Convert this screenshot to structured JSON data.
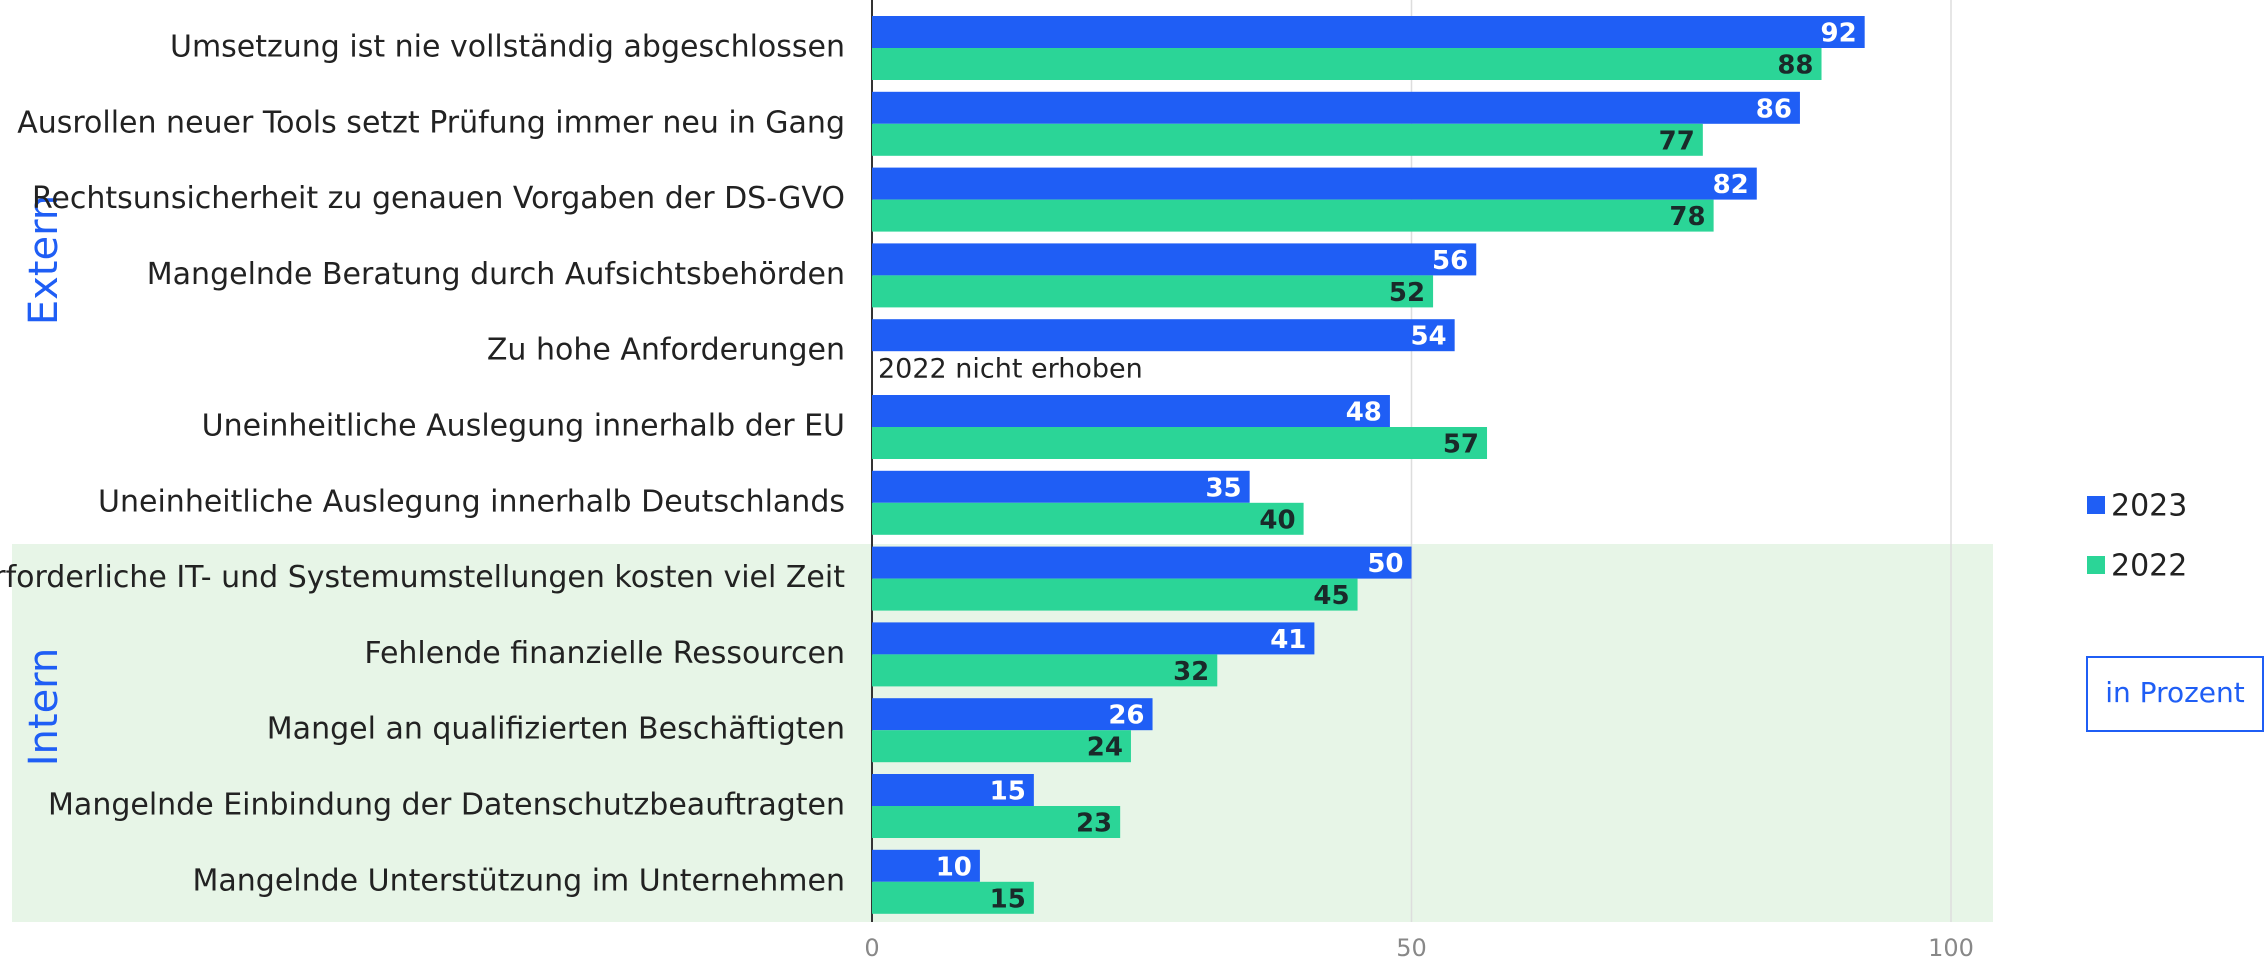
{
  "chart_data": {
    "type": "hbar",
    "categories": [
      "Umsetzung ist nie vollständig abgeschlossen",
      "Ausrollen neuer Tools setzt Prüfung immer neu in Gang",
      "Rechtsunsicherheit zu genauen Vorgaben der DS-GVO",
      "Mangelnde Beratung durch Aufsichtsbehörden",
      "Zu hohe Anforderungen",
      "Uneinheitliche Auslegung innerhalb der EU",
      "Uneinheitliche Auslegung innerhalb Deutschlands",
      "Erforderliche IT- und Systemumstellungen kosten viel Zeit",
      "Fehlende finanzielle Ressourcen",
      "Mangel an qualifizierten Beschäftigten",
      "Mangelnde Einbindung der Datenschutzbeauftragten",
      "Mangelnde Unterstützung im Unternehmen"
    ],
    "series": [
      {
        "name": "2023",
        "color": "#1f5ef5",
        "values": [
          92,
          86,
          82,
          56,
          54,
          48,
          35,
          50,
          41,
          26,
          15,
          10
        ]
      },
      {
        "name": "2022",
        "color": "#2bd597",
        "values": [
          88,
          77,
          78,
          52,
          null,
          57,
          40,
          45,
          32,
          24,
          23,
          15
        ]
      }
    ],
    "annotation": "2022 nicht erhoben",
    "groups": [
      "Extern",
      "Intern"
    ],
    "unit_note": "in Prozent",
    "xlim": [
      0,
      100
    ],
    "xticks": [
      0,
      50,
      100
    ],
    "grid": true,
    "legend": "right"
  }
}
